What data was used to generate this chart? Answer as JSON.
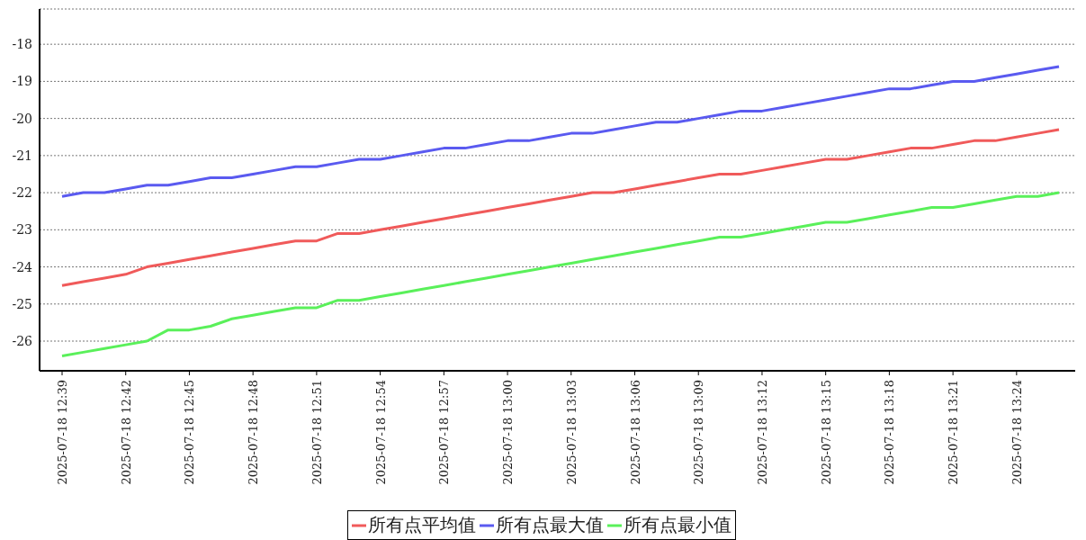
{
  "chart_data": {
    "type": "line",
    "categories": [
      "2025-07-18 12:39",
      null,
      null,
      "2025-07-18 12:42",
      null,
      null,
      "2025-07-18 12:45",
      null,
      null,
      "2025-07-18 12:48",
      null,
      null,
      "2025-07-18 12:51",
      null,
      null,
      "2025-07-18 12:54",
      null,
      null,
      "2025-07-18 12:57",
      null,
      null,
      "2025-07-18 13:00",
      null,
      null,
      "2025-07-18 13:03",
      null,
      null,
      "2025-07-18 13:06",
      null,
      null,
      "2025-07-18 13:09",
      null,
      null,
      "2025-07-18 13:12",
      null,
      null,
      "2025-07-18 13:15",
      null,
      null,
      "2025-07-18 13:18",
      null,
      null,
      "2025-07-18 13:21",
      null,
      null,
      "2025-07-18 13:24",
      null,
      null
    ],
    "series": [
      {
        "name": "所有点平均值",
        "color": "#f05a5a",
        "values": [
          -24.5,
          -24.4,
          -24.3,
          -24.2,
          -24.0,
          -23.9,
          -23.8,
          -23.7,
          -23.6,
          -23.5,
          -23.4,
          -23.3,
          -23.3,
          -23.1,
          -23.1,
          -23.0,
          -22.9,
          -22.8,
          -22.7,
          -22.6,
          -22.5,
          -22.4,
          -22.3,
          -22.2,
          -22.1,
          -22.0,
          -22.0,
          -21.9,
          -21.8,
          -21.7,
          -21.6,
          -21.5,
          -21.5,
          -21.4,
          -21.3,
          -21.2,
          -21.1,
          -21.1,
          -21.0,
          -20.9,
          -20.8,
          -20.8,
          -20.7,
          -20.6,
          -20.6,
          -20.5,
          -20.4,
          -20.3
        ]
      },
      {
        "name": "所有点最大值",
        "color": "#5a5af0",
        "values": [
          -22.1,
          -22.0,
          -22.0,
          -21.9,
          -21.8,
          -21.8,
          -21.7,
          -21.6,
          -21.6,
          -21.5,
          -21.4,
          -21.3,
          -21.3,
          -21.2,
          -21.1,
          -21.1,
          -21.0,
          -20.9,
          -20.8,
          -20.8,
          -20.7,
          -20.6,
          -20.6,
          -20.5,
          -20.4,
          -20.4,
          -20.3,
          -20.2,
          -20.1,
          -20.1,
          -20.0,
          -19.9,
          -19.8,
          -19.8,
          -19.7,
          -19.6,
          -19.5,
          -19.4,
          -19.3,
          -19.2,
          -19.2,
          -19.1,
          -19.0,
          -19.0,
          -18.9,
          -18.8,
          -18.7,
          -18.6
        ]
      },
      {
        "name": "所有点最小值",
        "color": "#5af05a",
        "values": [
          -26.4,
          -26.3,
          -26.2,
          -26.1,
          -26.0,
          -25.7,
          -25.7,
          -25.6,
          -25.4,
          -25.3,
          -25.2,
          -25.1,
          -25.1,
          -24.9,
          -24.9,
          -24.8,
          -24.7,
          -24.6,
          -24.5,
          -24.4,
          -24.3,
          -24.2,
          -24.1,
          -24.0,
          -23.9,
          -23.8,
          -23.7,
          -23.6,
          -23.5,
          -23.4,
          -23.3,
          -23.2,
          -23.2,
          -23.1,
          -23.0,
          -22.9,
          -22.8,
          -22.8,
          -22.7,
          -22.6,
          -22.5,
          -22.4,
          -22.4,
          -22.3,
          -22.2,
          -22.1,
          -22.1,
          -22.0
        ]
      }
    ],
    "ylim": [
      -26.8,
      -17.05
    ],
    "yticks": [
      -26,
      -25,
      -24,
      -23,
      -22,
      -21,
      -20,
      -19,
      -18
    ],
    "grid": "y",
    "legend": "bottom",
    "marker": "none",
    "line_style": "solid"
  }
}
